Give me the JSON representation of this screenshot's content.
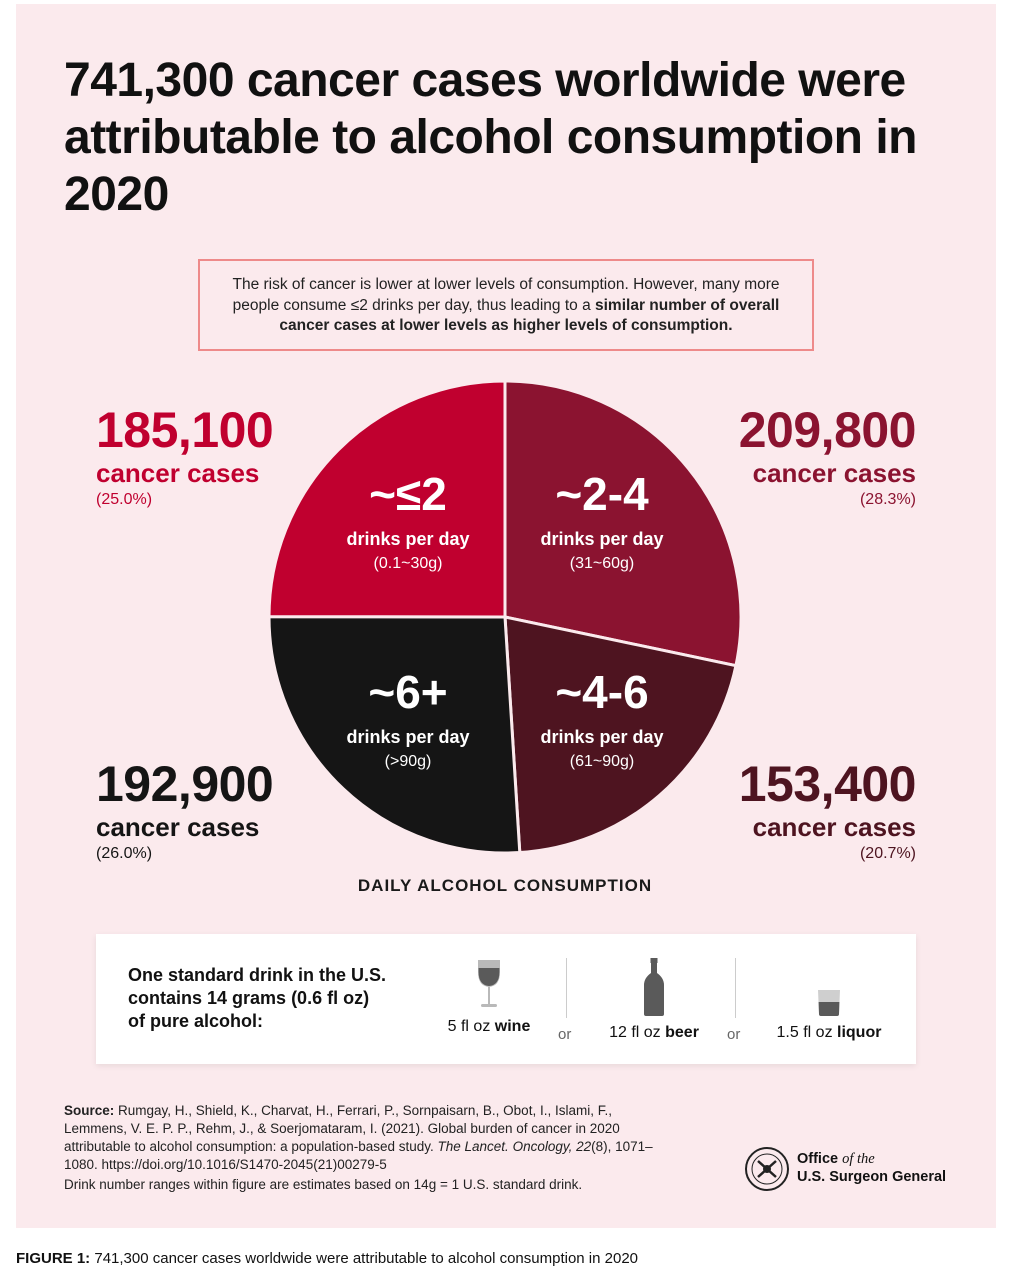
{
  "title": "741,300 cancer cases worldwide were attributable to alcohol consumption in 2020",
  "callout": {
    "text_plain": "The risk of cancer is lower at lower levels of consumption. However, many more people consume ≤2 drinks per day, thus leading to a ",
    "text_bold": "similar number of overall cancer cases at lower levels as higher levels of consumption."
  },
  "colors": {
    "background": "#fbeaed",
    "le2": "#c0002f",
    "2to4": "#8b1330",
    "4to6": "#4e1420",
    "6plus": "#151515",
    "callout_border": "#ee8a8a"
  },
  "chart_data": {
    "type": "pie",
    "title": "",
    "xlabel": "DAILY ALCOHOL CONSUMPTION",
    "unit_label": "cancer cases",
    "total": 741300,
    "slices": [
      {
        "label": "~≤2",
        "sub": "drinks per day",
        "grams": "(0.1~30g)",
        "value": 185100,
        "value_label": "185,100",
        "percent": 25.0,
        "percent_label": "(25.0%)",
        "color": "#c0002f"
      },
      {
        "label": "~2-4",
        "sub": "drinks per day",
        "grams": "(31~60g)",
        "value": 209800,
        "value_label": "209,800",
        "percent": 28.3,
        "percent_label": "(28.3%)",
        "color": "#8b1330"
      },
      {
        "label": "~4-6",
        "sub": "drinks per day",
        "grams": "(61~90g)",
        "value": 153400,
        "value_label": "153,400",
        "percent": 20.7,
        "percent_label": "(20.7%)",
        "color": "#4e1420"
      },
      {
        "label": "~6+",
        "sub": "drinks per day",
        "grams": "(>90g)",
        "value": 192900,
        "value_label": "192,900",
        "percent": 26.0,
        "percent_label": "(26.0%)",
        "color": "#151515"
      }
    ]
  },
  "drink": {
    "definition": "One standard drink in the U.S. contains 14 grams (0.6 fl oz) of pure alcohol:",
    "or": "or",
    "items": [
      {
        "amount": "5 fl oz",
        "type": "wine",
        "icon": "wine-glass-icon"
      },
      {
        "amount": "12 fl oz",
        "type": "beer",
        "icon": "beer-bottle-icon"
      },
      {
        "amount": "1.5 fl oz",
        "type": "liquor",
        "icon": "liquor-glass-icon"
      }
    ]
  },
  "source": {
    "label": "Source:",
    "authors": "Rumgay, H., Shield, K., Charvat, H., Ferrari, P., Sornpaisarn, B., Obot, I., Islami, F., Lemmens, V. E. P. P., Rehm, J., & Soerjomataram, I. (2021). Global burden of cancer in 2020 attributable to alcohol consumption: a population-based study.",
    "journal": "The Lancet. Oncology, 22",
    "details": "(8), 1071–1080. https://doi.org/10.1016/S1470-2045(21)00279-5",
    "note": "Drink number ranges within figure are estimates based on 14g = 1 U.S. standard drink."
  },
  "org": {
    "line1_bold": "Office",
    "line1_italic": "of the",
    "line2": "U.S. Surgeon General",
    "seal_icon": "surgeon-general-seal-icon"
  },
  "caption": {
    "label": "FIGURE 1:",
    "text": " 741,300 cancer cases worldwide were attributable to alcohol consumption in 2020"
  }
}
